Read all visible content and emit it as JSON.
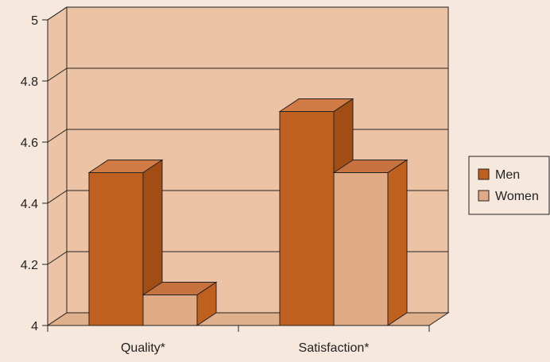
{
  "chart_data": {
    "type": "bar",
    "categories": [
      "Quality*",
      "Satisfaction*"
    ],
    "series": [
      {
        "name": "Men",
        "values": [
          4.5,
          4.7
        ]
      },
      {
        "name": "Women",
        "values": [
          4.1,
          4.5
        ]
      }
    ],
    "ylim": [
      4,
      5
    ],
    "yticks": [
      4,
      4.2,
      4.4,
      4.6,
      4.8,
      5
    ],
    "ytick_labels": [
      "4",
      "4.2",
      "4.4",
      "4.6",
      "4.8",
      "5"
    ],
    "grid": true,
    "legend_position": "right",
    "colors": {
      "background": "#f6e8dc",
      "plot_wall": "#ecc3a4",
      "floor": "#e0b08c",
      "Men": {
        "front": "#c0601f",
        "side": "#a24d14",
        "top": "#d07a44"
      },
      "Women": {
        "front": "#e0aa84",
        "side": "#c0601f",
        "top": "#c77340"
      },
      "axis": "#222222"
    }
  }
}
